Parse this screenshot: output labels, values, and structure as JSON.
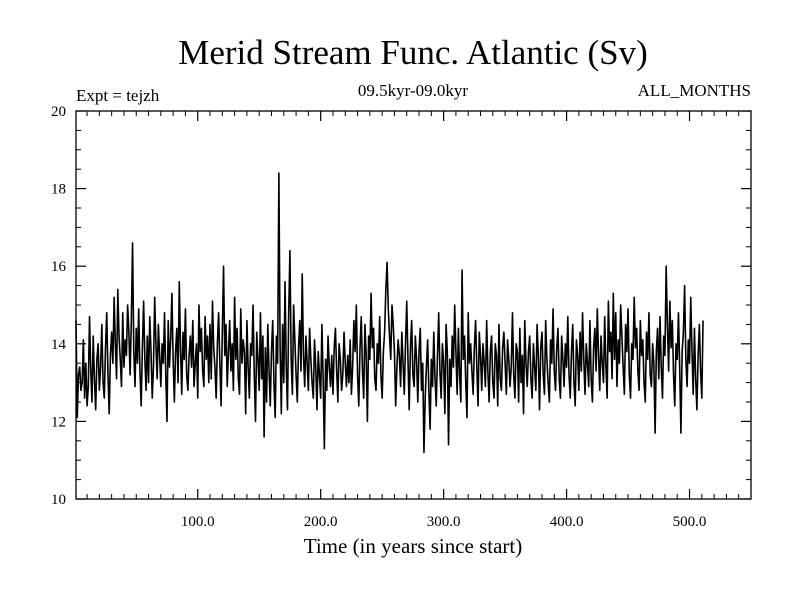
{
  "chart_data": {
    "type": "line",
    "title": "Merid Stream Func. Atlantic (Sv)",
    "subtitle_left": "Expt = tejzh",
    "subtitle_center": "09.5kyr-09.0kyr",
    "subtitle_right": "ALL_MONTHS",
    "xlabel": "Time (in years since start)",
    "ylabel": "",
    "xlim": [
      1,
      550
    ],
    "ylim": [
      10,
      20
    ],
    "xticks": [
      100,
      200,
      300,
      400,
      500
    ],
    "xtick_labels": [
      "100.0",
      "200.0",
      "300.0",
      "400.0",
      "500.0"
    ],
    "yticks": [
      10,
      12,
      14,
      16,
      18,
      20
    ],
    "ytick_labels": [
      "10",
      "12",
      "14",
      "16",
      "18",
      "20"
    ],
    "line_color": "#000000",
    "series": [
      {
        "name": "Merid Stream Func. Atlantic",
        "x_start": 1,
        "x_step": 1,
        "values": [
          14.6,
          12.1,
          13.2,
          13.4,
          12.8,
          13.0,
          14.1,
          12.6,
          13.5,
          12.4,
          12.9,
          14.7,
          13.3,
          12.5,
          14.2,
          13.1,
          12.3,
          13.6,
          14.0,
          12.8,
          13.4,
          14.5,
          13.0,
          12.6,
          13.9,
          14.8,
          13.2,
          12.2,
          13.7,
          14.3,
          13.5,
          15.2,
          14.0,
          13.1,
          15.4,
          14.2,
          13.6,
          12.9,
          14.8,
          13.4,
          14.1,
          13.7,
          15.0,
          14.3,
          13.2,
          14.6,
          16.6,
          13.8,
          12.9,
          14.4,
          13.5,
          14.9,
          13.3,
          12.4,
          13.9,
          15.1,
          13.6,
          12.8,
          14.2,
          13.0,
          14.7,
          13.8,
          12.6,
          13.4,
          15.2,
          14.0,
          13.1,
          14.5,
          13.7,
          12.9,
          14.0,
          13.5,
          14.8,
          13.2,
          12.0,
          14.6,
          13.4,
          14.1,
          15.3,
          13.6,
          12.5,
          13.8,
          14.4,
          13.0,
          15.6,
          13.9,
          12.7,
          14.3,
          13.6,
          14.9,
          13.2,
          12.8,
          13.7,
          14.2,
          13.4,
          14.6,
          12.9,
          13.5,
          14.0,
          12.6,
          15.0,
          13.8,
          14.4,
          13.3,
          12.9,
          14.7,
          13.6,
          14.2,
          13.0,
          14.5,
          13.1,
          15.1,
          13.9,
          13.4,
          12.6,
          14.0,
          14.8,
          13.5,
          12.4,
          14.3,
          16.0,
          13.7,
          14.5,
          12.9,
          13.8,
          14.6,
          13.3,
          14.0,
          12.8,
          15.2,
          13.6,
          14.4,
          13.1,
          12.7,
          14.9,
          13.5,
          14.1,
          13.8,
          12.2,
          14.6,
          13.4,
          12.6,
          14.0,
          13.7,
          15.0,
          13.2,
          12.0,
          14.3,
          13.6,
          12.8,
          14.8,
          13.1,
          14.2,
          11.6,
          13.9,
          12.5,
          14.5,
          13.3,
          12.4,
          13.8,
          14.6,
          13.0,
          12.1,
          14.2,
          13.5,
          18.4,
          13.9,
          12.2,
          14.5,
          13.0,
          15.6,
          13.4,
          12.3,
          14.8,
          16.4,
          13.6,
          12.7,
          15.0,
          14.1,
          13.2,
          12.5,
          13.9,
          14.6,
          13.3,
          15.8,
          13.7,
          12.9,
          14.2,
          13.5,
          12.8,
          14.4,
          13.6,
          13.0,
          12.6,
          14.1,
          13.4,
          12.3,
          13.8,
          13.2,
          12.6,
          14.5,
          13.1,
          11.3,
          13.6,
          12.8,
          14.2,
          13.4,
          12.9,
          13.7,
          12.7,
          13.9,
          14.4,
          13.3,
          12.5,
          14.0,
          13.6,
          12.8,
          13.2,
          14.3,
          13.5,
          12.9,
          13.7,
          13.0,
          14.1,
          12.7,
          13.4,
          14.6,
          13.8,
          15.0,
          13.2,
          12.4,
          13.9,
          14.7,
          13.3,
          12.6,
          14.5,
          13.7,
          12.0,
          14.2,
          13.6,
          15.3,
          13.9,
          14.4,
          13.1,
          12.8,
          14.0,
          13.5,
          14.7,
          13.2,
          12.6,
          13.8,
          14.3,
          15.4,
          16.1,
          14.9,
          14.2,
          13.6,
          15.0,
          14.5,
          13.8,
          12.4,
          13.4,
          14.1,
          13.7,
          12.9,
          14.3,
          13.5,
          12.7,
          14.0,
          15.1,
          13.6,
          12.3,
          13.9,
          14.6,
          13.2,
          12.9,
          14.2,
          13.6,
          12.5,
          13.8,
          14.4,
          12.8,
          13.5,
          11.2,
          12.6,
          13.4,
          14.1,
          12.8,
          11.8,
          13.6,
          12.9,
          14.3,
          13.1,
          12.4,
          13.7,
          14.8,
          13.3,
          12.6,
          14.0,
          13.5,
          12.2,
          14.5,
          13.8,
          11.4,
          13.6,
          12.9,
          14.2,
          13.4,
          15.0,
          13.8,
          12.7,
          14.4,
          13.2,
          12.5,
          15.9,
          13.6,
          14.2,
          13.0,
          12.1,
          14.8,
          13.5,
          14.0,
          13.3,
          12.7,
          13.9,
          14.6,
          13.4,
          12.4,
          14.3,
          13.7,
          12.8,
          14.0,
          13.5,
          12.9,
          14.6,
          13.3,
          12.5,
          13.8,
          14.2,
          13.0,
          12.6,
          14.0,
          13.7,
          12.4,
          14.5,
          13.1,
          12.8,
          13.9,
          14.3,
          13.5,
          12.7,
          14.1,
          13.6,
          12.9,
          13.4,
          14.8,
          13.2,
          12.6,
          14.0,
          13.8,
          12.5,
          14.4,
          13.0,
          13.7,
          12.2,
          14.6,
          13.5,
          12.9,
          13.8,
          14.2,
          13.1,
          12.6,
          14.0,
          13.4,
          12.8,
          14.5,
          13.7,
          12.3,
          13.9,
          14.3,
          13.2,
          12.7,
          14.6,
          13.6,
          13.0,
          12.5,
          14.1,
          13.5,
          14.9,
          13.3,
          12.8,
          13.9,
          14.4,
          13.1,
          12.6,
          14.2,
          13.6,
          12.9,
          14.0,
          13.4,
          14.7,
          13.2,
          12.6,
          13.8,
          14.5,
          13.0,
          12.4,
          14.1,
          13.7,
          12.8,
          14.3,
          13.3,
          14.8,
          13.6,
          12.7,
          14.0,
          13.5,
          12.9,
          14.6,
          13.1,
          12.5,
          13.9,
          14.4,
          13.3,
          14.9,
          13.7,
          12.8,
          14.2,
          13.5,
          13.0,
          14.7,
          13.4,
          12.6,
          15.1,
          13.8,
          14.3,
          13.1,
          15.3,
          13.6,
          14.8,
          12.9,
          14.1,
          13.5,
          15.0,
          14.2,
          13.4,
          12.7,
          14.5,
          13.8,
          14.9,
          13.2,
          12.6,
          14.0,
          13.6,
          15.2,
          13.9,
          14.4,
          13.3,
          12.8,
          14.6,
          13.7,
          14.1,
          13.0,
          12.5,
          14.3,
          13.6,
          14.8,
          13.2,
          12.9,
          14.0,
          13.5,
          11.7,
          13.8,
          14.4,
          13.1,
          14.7,
          13.4,
          12.6,
          14.2,
          13.7,
          16.0,
          14.5,
          13.3,
          15.1,
          13.9,
          14.6,
          13.2,
          12.4,
          14.0,
          13.6,
          14.8,
          13.4,
          11.7,
          13.8,
          14.3,
          15.5,
          13.6,
          12.9,
          14.1,
          13.5,
          15.2,
          13.8,
          12.7,
          14.4,
          13.1,
          12.3,
          13.7,
          14.5,
          13.3,
          12.6,
          14.6
        ]
      }
    ]
  }
}
